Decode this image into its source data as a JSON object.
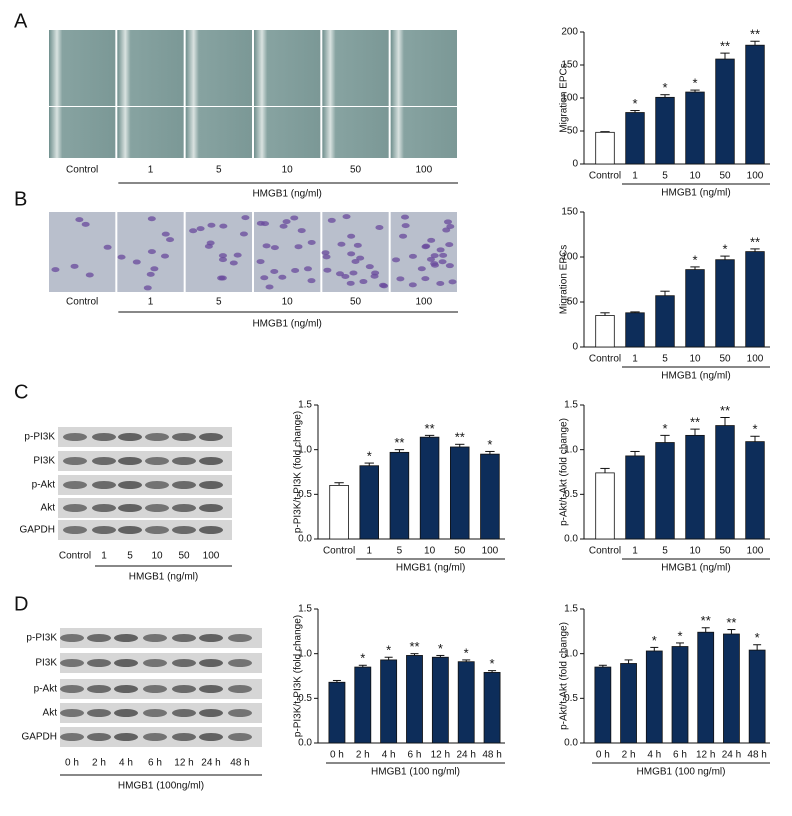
{
  "panels": [
    {
      "letter": "A",
      "lanes": [
        "Control",
        "1",
        "5",
        "10",
        "50",
        "100"
      ],
      "group": "HMGB1 (ng/ml)"
    },
    {
      "letter": "B",
      "lanes": [
        "Control",
        "1",
        "5",
        "10",
        "50",
        "100"
      ],
      "group": "HMGB1 (ng/ml)"
    },
    {
      "letter": "C",
      "rows": [
        "p-PI3K",
        "PI3K",
        "p-Akt",
        "Akt",
        "GAPDH"
      ],
      "lanes": [
        "Control",
        "1",
        "5",
        "10",
        "50",
        "100"
      ],
      "group": "HMGB1 (ng/ml)"
    },
    {
      "letter": "D",
      "rows": [
        "p-PI3K",
        "PI3K",
        "p-Akt",
        "Akt",
        "GAPDH"
      ],
      "lanes": [
        "0 h",
        "2 h",
        "4 h",
        "6 h",
        "12 h",
        "24 h",
        "48 h"
      ],
      "group": "HMGB1 (100ng/ml)"
    }
  ],
  "chart_data": [
    {
      "type": "bar",
      "ylabel": "Migration EPCs",
      "xlabel": "HMGB1 (ng/ml)",
      "categories": [
        "Control",
        "1",
        "5",
        "10",
        "50",
        "100"
      ],
      "values": [
        48,
        78,
        101,
        109,
        159,
        180
      ],
      "errors": [
        1,
        3,
        4,
        3,
        9,
        6
      ],
      "annotations": [
        null,
        "*",
        "*",
        "*",
        "**",
        "**"
      ],
      "colors": [
        "#ffffff",
        "#0d2d5a",
        "#0d2d5a",
        "#0d2d5a",
        "#0d2d5a",
        "#0d2d5a"
      ],
      "ylim": [
        0,
        200
      ],
      "yticks": [
        0,
        50,
        100,
        150,
        200
      ]
    },
    {
      "type": "bar",
      "ylabel": "Migration EPCs",
      "xlabel": "HMGB1 (ng/ml)",
      "categories": [
        "Control",
        "1",
        "5",
        "10",
        "50",
        "100"
      ],
      "values": [
        35,
        38,
        57,
        86,
        97,
        106
      ],
      "errors": [
        3,
        1,
        5,
        3,
        4,
        3
      ],
      "annotations": [
        null,
        null,
        null,
        "*",
        "*",
        "**"
      ],
      "colors": [
        "#ffffff",
        "#0d2d5a",
        "#0d2d5a",
        "#0d2d5a",
        "#0d2d5a",
        "#0d2d5a"
      ],
      "ylim": [
        0,
        150
      ],
      "yticks": [
        0,
        50,
        100,
        150
      ]
    },
    {
      "type": "bar",
      "ylabel": "p-PI3K/t-PI3K (fold change)",
      "xlabel": "HMGB1 (ng/ml)",
      "categories": [
        "Control",
        "1",
        "5",
        "10",
        "50",
        "100"
      ],
      "values": [
        0.6,
        0.82,
        0.97,
        1.14,
        1.03,
        0.95
      ],
      "errors": [
        0.03,
        0.03,
        0.03,
        0.02,
        0.03,
        0.03
      ],
      "annotations": [
        null,
        "*",
        "**",
        "**",
        "**",
        "*"
      ],
      "colors": [
        "#ffffff",
        "#0d2d5a",
        "#0d2d5a",
        "#0d2d5a",
        "#0d2d5a",
        "#0d2d5a"
      ],
      "ylim": [
        0,
        1.5
      ],
      "yticks": [
        {
          "value": 0,
          "label": "0.0"
        },
        0.5,
        {
          "value": 1,
          "label": "1.0"
        },
        1.5
      ]
    },
    {
      "type": "bar",
      "ylabel": "p-Akt/t-Akt (fold change)",
      "xlabel": "HMGB1 (ng/ml)",
      "categories": [
        "Control",
        "1",
        "5",
        "10",
        "50",
        "100"
      ],
      "values": [
        0.74,
        0.93,
        1.08,
        1.16,
        1.27,
        1.09
      ],
      "errors": [
        0.05,
        0.05,
        0.08,
        0.07,
        0.09,
        0.06
      ],
      "annotations": [
        null,
        null,
        "*",
        "**",
        "**",
        "*"
      ],
      "colors": [
        "#ffffff",
        "#0d2d5a",
        "#0d2d5a",
        "#0d2d5a",
        "#0d2d5a",
        "#0d2d5a"
      ],
      "ylim": [
        0,
        1.5
      ],
      "yticks": [
        {
          "value": 0,
          "label": "0.0"
        },
        0.5,
        {
          "value": 1,
          "label": "1.0"
        },
        1.5
      ]
    },
    {
      "type": "bar",
      "ylabel": "p-PI3K/t-PI3K (fold change)",
      "xlabel": "HMGB1 (100 ng/ml)",
      "categories": [
        "0 h",
        "2 h",
        "4 h",
        "6 h",
        "12 h",
        "24 h",
        "48 h"
      ],
      "values": [
        0.68,
        0.85,
        0.93,
        0.98,
        0.96,
        0.91,
        0.79
      ],
      "errors": [
        0.02,
        0.02,
        0.03,
        0.02,
        0.02,
        0.02,
        0.02
      ],
      "annotations": [
        null,
        "*",
        "*",
        "**",
        "*",
        "*",
        "*"
      ],
      "colors": [
        "#0d2d5a",
        "#0d2d5a",
        "#0d2d5a",
        "#0d2d5a",
        "#0d2d5a",
        "#0d2d5a",
        "#0d2d5a"
      ],
      "ylim": [
        0,
        1.5
      ],
      "yticks": [
        {
          "value": 0,
          "label": "0.0"
        },
        0.5,
        {
          "value": 1,
          "label": "1.0"
        },
        1.5
      ]
    },
    {
      "type": "bar",
      "ylabel": "p-Akt/t-Akt (fold change)",
      "xlabel": "HMGB1 (100 ng/ml)",
      "categories": [
        "0 h",
        "2 h",
        "4 h",
        "6 h",
        "12 h",
        "24 h",
        "48 h"
      ],
      "values": [
        0.85,
        0.89,
        1.03,
        1.08,
        1.24,
        1.22,
        1.04
      ],
      "errors": [
        0.02,
        0.04,
        0.04,
        0.04,
        0.05,
        0.05,
        0.06
      ],
      "annotations": [
        null,
        null,
        "*",
        "*",
        "**",
        "**",
        "*"
      ],
      "colors": [
        "#0d2d5a",
        "#0d2d5a",
        "#0d2d5a",
        "#0d2d5a",
        "#0d2d5a",
        "#0d2d5a",
        "#0d2d5a"
      ],
      "ylim": [
        0,
        1.5
      ],
      "yticks": [
        {
          "value": 0,
          "label": "0.0"
        },
        0.5,
        {
          "value": 1,
          "label": "1.0"
        },
        1.5
      ]
    }
  ]
}
